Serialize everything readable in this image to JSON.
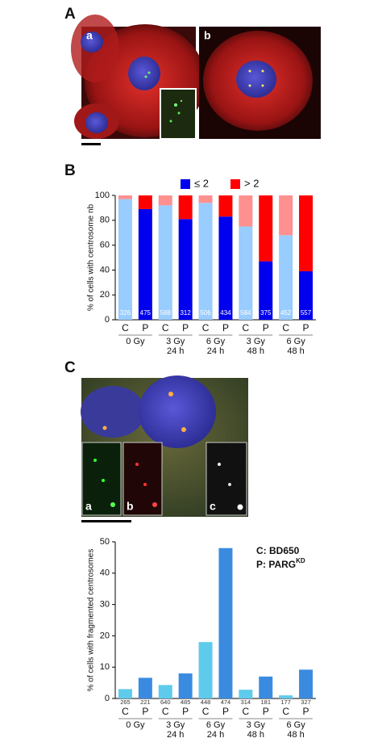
{
  "figure": {
    "panel_labels": [
      "A",
      "B",
      "C"
    ],
    "image_labels": [
      "a",
      "b",
      "a",
      "b",
      "c"
    ]
  },
  "chart_data": [
    {
      "type": "stacked-bar",
      "y_label": "% of cells with centrosome nb",
      "categories": [
        "C",
        "P",
        "C",
        "P",
        "C",
        "P",
        "C",
        "P",
        "C",
        "P"
      ],
      "groups": [
        [
          "0 Gy"
        ],
        [
          "3 Gy",
          "24 h"
        ],
        [
          "6 Gy",
          "24 h"
        ],
        [
          "3 Gy",
          "48 h"
        ],
        [
          "6 Gy",
          "48 h"
        ]
      ],
      "counts": [
        326,
        475,
        588,
        312,
        506,
        434,
        584,
        375,
        452,
        557
      ],
      "series": [
        {
          "name": "≤ 2",
          "color": "#0000ee",
          "values": [
            97,
            89,
            92,
            81,
            94,
            83,
            75,
            47,
            68,
            39
          ],
          "colors": [
            "#99ccff",
            "#0000ee",
            "#99ccff",
            "#0000ee",
            "#99ccff",
            "#0000ee",
            "#99ccff",
            "#0000ee",
            "#99ccff",
            "#0000ee"
          ]
        },
        {
          "name": "> 2",
          "color": "#ff0000",
          "values": [
            3,
            11,
            8,
            19,
            6,
            17,
            25,
            53,
            32,
            61
          ],
          "colors": [
            "#ff9090",
            "#ff0000",
            "#ff9090",
            "#ff0000",
            "#ff9090",
            "#ff0000",
            "#ff9090",
            "#ff0000",
            "#ff9090",
            "#ff0000"
          ]
        }
      ],
      "ylim": [
        0,
        100
      ],
      "yticks": [
        0,
        20,
        40,
        60,
        80,
        100
      ]
    },
    {
      "type": "bar",
      "y_label": "% of cells with fragmented centrosomes",
      "categories": [
        "C",
        "P",
        "C",
        "P",
        "C",
        "P",
        "C",
        "P",
        "C",
        "P"
      ],
      "groups": [
        [
          "0 Gy"
        ],
        [
          "3 Gy",
          "24 h"
        ],
        [
          "6 Gy",
          "24 h"
        ],
        [
          "3 Gy",
          "48 h"
        ],
        [
          "6 Gy",
          "48 h"
        ]
      ],
      "counts": [
        265,
        221,
        640,
        485,
        448,
        474,
        314,
        181,
        177,
        327
      ],
      "values": [
        3,
        6.6,
        4.3,
        8,
        18,
        48,
        2.8,
        7,
        1,
        9.2
      ],
      "colors": [
        "#5fcbec",
        "#3a8be0",
        "#5fcbec",
        "#3a8be0",
        "#5fcbec",
        "#3a8be0",
        "#5fcbec",
        "#3a8be0",
        "#5fcbec",
        "#3a8be0"
      ],
      "annotations": [
        {
          "text": "C: BD650"
        },
        {
          "text": "P: PARG",
          "superscript": "KD"
        }
      ],
      "ylim": [
        0,
        50
      ],
      "yticks": [
        0,
        10,
        20,
        30,
        40,
        50
      ]
    }
  ]
}
